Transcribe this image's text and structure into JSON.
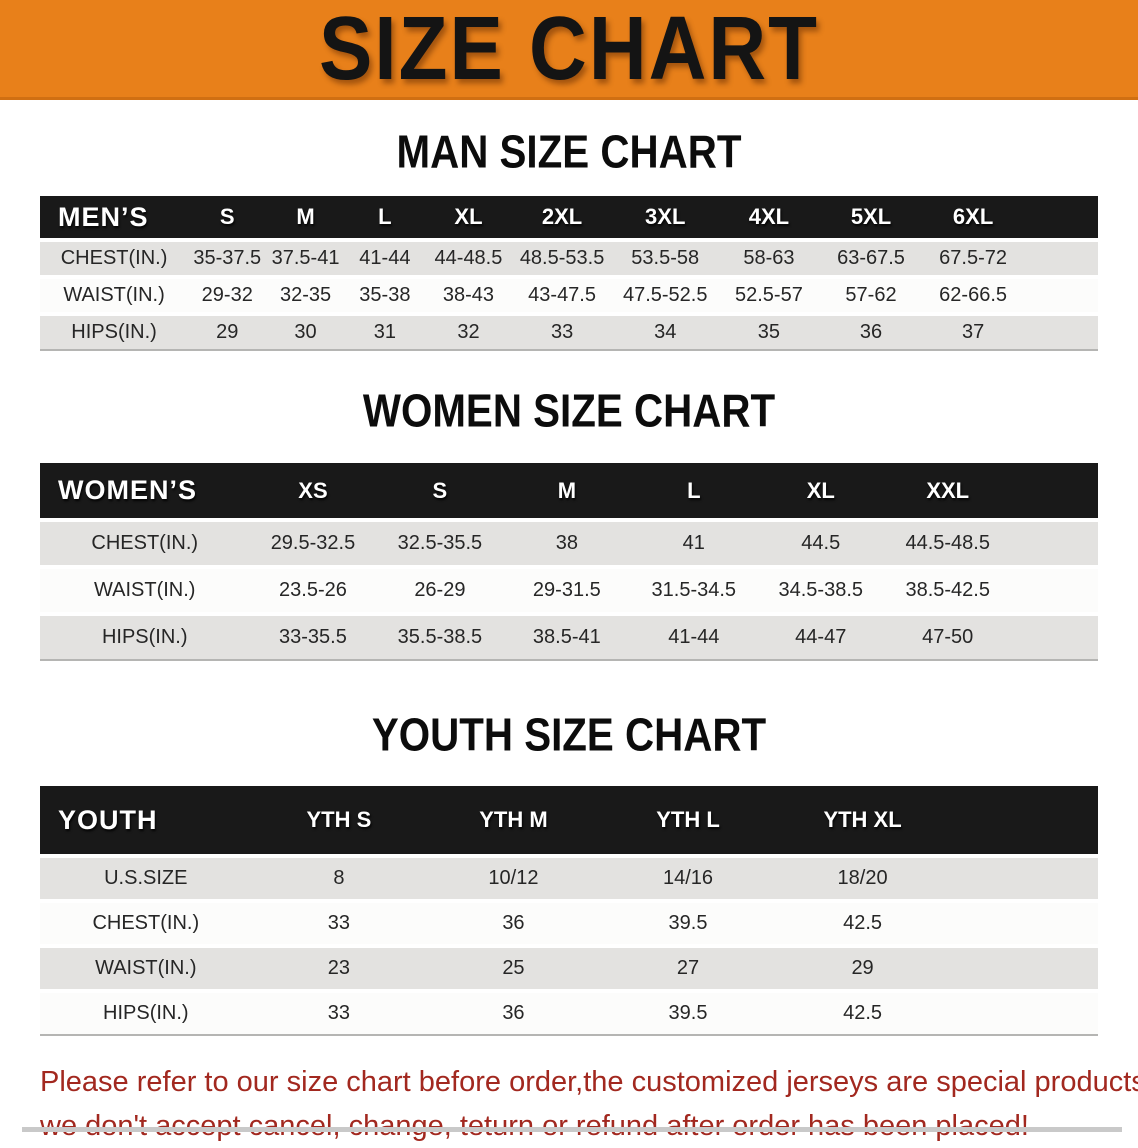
{
  "banner": {
    "title": "SIZE CHART"
  },
  "sections": {
    "man": {
      "heading": "MAN SIZE CHART"
    },
    "women": {
      "heading": "WOMEN SIZE CHART"
    },
    "youth": {
      "heading": "YOUTH SIZE CHART"
    }
  },
  "tables": {
    "men": {
      "header_label": "MEN’S",
      "columns": [
        "S",
        "M",
        "L",
        "XL",
        "2XL",
        "3XL",
        "4XL",
        "5XL",
        "6XL"
      ],
      "rows": [
        {
          "label": "CHEST(IN.)",
          "values": [
            "35-37.5",
            "37.5-41",
            "41-44",
            "44-48.5",
            "48.5-53.5",
            "53.5-58",
            "58-63",
            "63-67.5",
            "67.5-72"
          ]
        },
        {
          "label": "WAIST(IN.)",
          "values": [
            "29-32",
            "32-35",
            "35-38",
            "38-43",
            "43-47.5",
            "47.5-52.5",
            "52.5-57",
            "57-62",
            "62-66.5"
          ]
        },
        {
          "label": "HIPS(IN.)",
          "values": [
            "29",
            "30",
            "31",
            "32",
            "33",
            "34",
            "35",
            "36",
            "37"
          ]
        }
      ]
    },
    "women": {
      "header_label": "WOMEN’S",
      "columns": [
        "XS",
        "S",
        "M",
        "L",
        "XL",
        "XXL"
      ],
      "rows": [
        {
          "label": "CHEST(IN.)",
          "values": [
            "29.5-32.5",
            "32.5-35.5",
            "38",
            "41",
            "44.5",
            "44.5-48.5"
          ]
        },
        {
          "label": "WAIST(IN.)",
          "values": [
            "23.5-26",
            "26-29",
            "29-31.5",
            "31.5-34.5",
            "34.5-38.5",
            "38.5-42.5"
          ]
        },
        {
          "label": "HIPS(IN.)",
          "values": [
            "33-35.5",
            "35.5-38.5",
            "38.5-41",
            "41-44",
            "44-47",
            "47-50"
          ]
        }
      ]
    },
    "youth": {
      "header_label": "YOUTH",
      "columns": [
        "YTH S",
        "YTH M",
        "YTH L",
        "YTH XL"
      ],
      "rows": [
        {
          "label": "U.S.SIZE",
          "values": [
            "8",
            "10/12",
            "14/16",
            "18/20"
          ]
        },
        {
          "label": "CHEST(IN.)",
          "values": [
            "33",
            "36",
            "39.5",
            "42.5"
          ]
        },
        {
          "label": "WAIST(IN.)",
          "values": [
            "23",
            "25",
            "27",
            "29"
          ]
        },
        {
          "label": "HIPS(IN.)",
          "values": [
            "33",
            "36",
            "39.5",
            "42.5"
          ]
        }
      ]
    }
  },
  "footer": {
    "line1": "Please refer to our size chart before order,the customized jerseys are special products,",
    "line2": "we don't accept cancel, change, teturn or refund after order has been placed!"
  },
  "colors": {
    "banner_orange": "#e8801a",
    "header_black": "#191919",
    "row_gray": "#e3e2e0",
    "notice_red": "#a2281f"
  }
}
